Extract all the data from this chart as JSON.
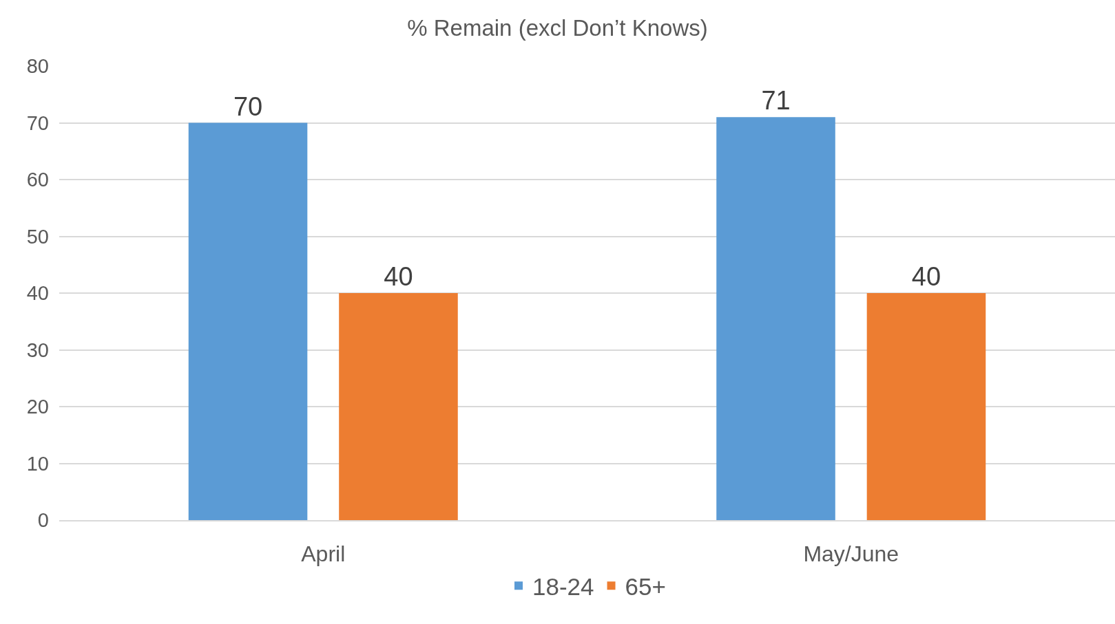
{
  "chart_data": {
    "type": "bar",
    "title": "% Remain (excl Don’t Knows)",
    "categories": [
      "April",
      "May/June"
    ],
    "series": [
      {
        "name": "18-24",
        "color": "#5b9bd5",
        "values": [
          70,
          71
        ]
      },
      {
        "name": "65+",
        "color": "#ed7d31",
        "values": [
          40,
          40
        ]
      }
    ],
    "ylim": [
      0,
      80
    ],
    "yticks": [
      0,
      10,
      20,
      30,
      40,
      50,
      60,
      70,
      80
    ],
    "grid": "y",
    "legend": "bottom",
    "data_labels": true
  }
}
